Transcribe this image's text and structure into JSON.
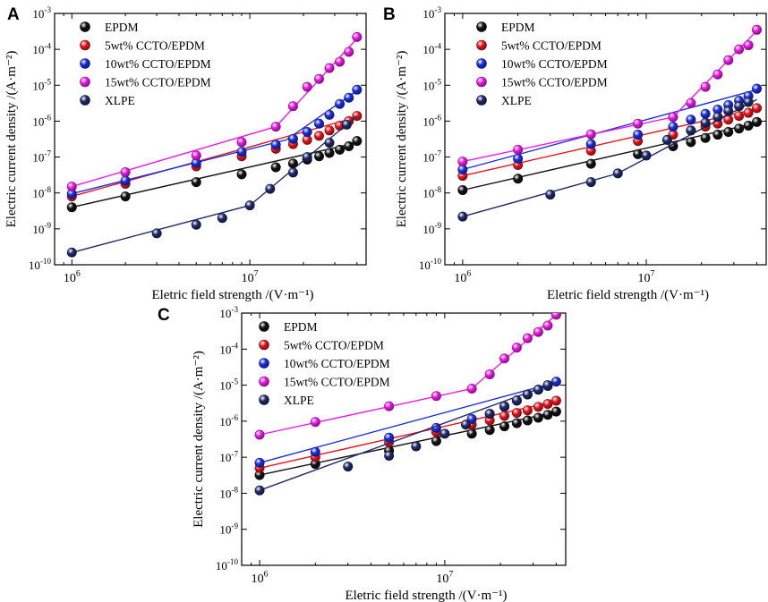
{
  "figure": {
    "panels": [
      "A",
      "B",
      "C"
    ]
  },
  "chart_data": [
    {
      "panel": "A",
      "type": "scatter",
      "xscale": "log",
      "yscale": "log",
      "xlabel": "Eletric field strength /(V·m⁻¹)",
      "ylabel": "Electric current density /(A·m⁻²)",
      "xlim": [
        800000.0,
        45000000.0
      ],
      "ylim": [
        1e-10,
        0.001
      ],
      "xticks": [
        "10^6",
        "10^7"
      ],
      "yticks": [
        "10^-10",
        "10^-9",
        "10^-8",
        "10^-7",
        "10^-6",
        "10^-5",
        "10^-4",
        "10^-3"
      ],
      "legend_position": "top-left",
      "series": [
        {
          "name": "EPDM",
          "color": "#111111",
          "x": [
            1000000.0,
            2000000.0,
            5000000.0,
            9000000.0,
            14000000.0,
            17500000.0,
            21000000.0,
            24500000.0,
            28000000.0,
            32000000.0,
            36000000.0,
            40000000.0
          ],
          "y": [
            4e-09,
            8e-09,
            2e-08,
            3.3e-08,
            5.2e-08,
            6.6e-08,
            8.5e-08,
            1.05e-07,
            1.3e-07,
            1.6e-07,
            2e-07,
            2.8e-07
          ],
          "fit": [
            [
              1000000.0,
              4e-09
            ],
            [
              40000000.0,
              2.5e-07
            ]
          ]
        },
        {
          "name": "5wt% CCTO/EPDM",
          "color": "#e8141c",
          "x": [
            1000000.0,
            2000000.0,
            5000000.0,
            9000000.0,
            14000000.0,
            17500000.0,
            21000000.0,
            24500000.0,
            28000000.0,
            32000000.0,
            36000000.0,
            40000000.0
          ],
          "y": [
            8e-09,
            1.8e-08,
            5.5e-08,
            1.05e-07,
            1.7e-07,
            2.3e-07,
            3e-07,
            3.9e-07,
            5.5e-07,
            7.5e-07,
            1e-06,
            1.4e-06
          ],
          "fit": [
            [
              1000000.0,
              8e-09
            ],
            [
              40000000.0,
              1.3e-06
            ]
          ]
        },
        {
          "name": "10wt% CCTO/EPDM",
          "color": "#1a2ee0",
          "x": [
            1000000.0,
            2000000.0,
            5000000.0,
            9000000.0,
            14000000.0,
            17500000.0,
            21000000.0,
            24500000.0,
            28000000.0,
            32000000.0,
            36000000.0,
            40000000.0
          ],
          "y": [
            9.5e-09,
            2.2e-08,
            6.8e-08,
            1.4e-07,
            2.2e-07,
            3.2e-07,
            5e-07,
            8.5e-07,
            1.5e-06,
            3e-06,
            4.5e-06,
            7.5e-06
          ],
          "fit": [
            [
              1000000.0,
              9.5e-09
            ],
            [
              16000000.0,
              3e-07
            ],
            [
              40000000.0,
              7e-06
            ]
          ]
        },
        {
          "name": "15wt% CCTO/EPDM",
          "color": "#ee1ae8",
          "x": [
            1000000.0,
            2000000.0,
            5000000.0,
            9000000.0,
            14000000.0,
            17500000.0,
            21000000.0,
            24500000.0,
            28000000.0,
            32000000.0,
            36000000.0,
            40000000.0
          ],
          "y": [
            1.5e-08,
            3.8e-08,
            1.1e-07,
            2.6e-07,
            7e-07,
            2.6e-06,
            9e-06,
            1.5e-05,
            3e-05,
            4.5e-05,
            8.5e-05,
            0.00022
          ],
          "fit": [
            [
              1000000.0,
              1.5e-08
            ],
            [
              14000000.0,
              7e-07
            ],
            [
              40000000.0,
              0.0002
            ]
          ]
        },
        {
          "name": "XLPE",
          "color": "#1f2a6b",
          "x": [
            1000000.0,
            3000000.0,
            5000000.0,
            7000000.0,
            10000000.0,
            13000000.0,
            17500000.0,
            21000000.0,
            28000000.0,
            35000000.0
          ],
          "y": [
            2.2e-10,
            7.5e-10,
            1.3e-09,
            2e-09,
            4.5e-09,
            1.3e-08,
            3.7e-08,
            1e-07,
            2.5e-07,
            8e-07
          ],
          "fit": [
            [
              1000000.0,
              2.2e-10
            ],
            [
              10000000.0,
              4.5e-09
            ],
            [
              40000000.0,
              1.4e-06
            ]
          ]
        }
      ]
    },
    {
      "panel": "B",
      "type": "scatter",
      "xscale": "log",
      "yscale": "log",
      "xlabel": "Eletric field strength /(V·m⁻¹)",
      "ylabel": "Electric current density /(A·m⁻²)",
      "xlim": [
        800000.0,
        45000000.0
      ],
      "ylim": [
        1e-10,
        0.001
      ],
      "xticks": [
        "10^6",
        "10^7"
      ],
      "yticks": [
        "10^-10",
        "10^-9",
        "10^-8",
        "10^-7",
        "10^-6",
        "10^-5",
        "10^-4",
        "10^-3"
      ],
      "legend_position": "top-left",
      "series": [
        {
          "name": "EPDM",
          "color": "#111111",
          "x": [
            1000000.0,
            2000000.0,
            5000000.0,
            9000000.0,
            14000000.0,
            17500000.0,
            21000000.0,
            24500000.0,
            28000000.0,
            32000000.0,
            36000000.0,
            40000000.0
          ],
          "y": [
            1.2e-08,
            2.5e-08,
            6.5e-08,
            1.2e-07,
            2e-07,
            2.6e-07,
            3.4e-07,
            4.2e-07,
            5e-07,
            6.2e-07,
            7.5e-07,
            9.5e-07
          ],
          "fit": [
            [
              1000000.0,
              1.2e-08
            ],
            [
              40000000.0,
              9e-07
            ]
          ]
        },
        {
          "name": "5wt% CCTO/EPDM",
          "color": "#e8141c",
          "x": [
            1000000.0,
            2000000.0,
            5000000.0,
            9000000.0,
            14000000.0,
            17500000.0,
            21000000.0,
            24500000.0,
            28000000.0,
            32000000.0,
            36000000.0,
            40000000.0
          ],
          "y": [
            3e-08,
            6e-08,
            1.5e-07,
            2.8e-07,
            4.2e-07,
            5.5e-07,
            7e-07,
            8.5e-07,
            1.1e-06,
            1.4e-06,
            1.7e-06,
            2.3e-06
          ],
          "fit": [
            [
              1000000.0,
              3e-08
            ],
            [
              40000000.0,
              2.2e-06
            ]
          ]
        },
        {
          "name": "10wt% CCTO/EPDM",
          "color": "#1a2ee0",
          "x": [
            1000000.0,
            2000000.0,
            5000000.0,
            9000000.0,
            14000000.0,
            17500000.0,
            21000000.0,
            24500000.0,
            28000000.0,
            32000000.0,
            36000000.0,
            40000000.0
          ],
          "y": [
            4.5e-08,
            9e-08,
            2.3e-07,
            4.2e-07,
            7e-07,
            1.1e-06,
            1.6e-06,
            2.1e-06,
            2.8e-06,
            3.7e-06,
            5e-06,
            8e-06
          ],
          "fit": [
            [
              1000000.0,
              4.5e-08
            ],
            [
              40000000.0,
              7.5e-06
            ]
          ]
        },
        {
          "name": "15wt% CCTO/EPDM",
          "color": "#ee1ae8",
          "x": [
            1000000.0,
            2000000.0,
            5000000.0,
            9000000.0,
            14000000.0,
            17500000.0,
            21000000.0,
            24500000.0,
            28000000.0,
            32000000.0,
            36000000.0,
            40000000.0
          ],
          "y": [
            7.5e-08,
            1.6e-07,
            4.3e-07,
            8.5e-07,
            1.3e-06,
            3.2e-06,
            9e-06,
            2e-05,
            5e-05,
            0.0001,
            0.00013,
            0.00035
          ],
          "fit": [
            [
              1000000.0,
              7.5e-08
            ],
            [
              14000000.0,
              1.3e-06
            ],
            [
              40000000.0,
              0.00033
            ]
          ]
        },
        {
          "name": "XLPE",
          "color": "#1f2a6b",
          "x": [
            1000000.0,
            3000000.0,
            5000000.0,
            7000000.0,
            10000000.0,
            13000000.0,
            17500000.0,
            21000000.0,
            24500000.0,
            28000000.0,
            32000000.0,
            36000000.0
          ],
          "y": [
            2.2e-09,
            9e-09,
            2e-08,
            3.5e-08,
            1.1e-07,
            3e-07,
            5.5e-07,
            9e-07,
            1.3e-06,
            1.9e-06,
            2.6e-06,
            3.4e-06
          ],
          "fit": [
            [
              1000000.0,
              2.2e-09
            ],
            [
              7000000.0,
              3.5e-08
            ],
            [
              40000000.0,
              4e-06
            ]
          ]
        }
      ]
    },
    {
      "panel": "C",
      "type": "scatter",
      "xscale": "log",
      "yscale": "log",
      "xlabel": "Eletric field strength /(V·m⁻¹)",
      "ylabel": "Electric current density /(A·m⁻²)",
      "xlim": [
        800000.0,
        45000000.0
      ],
      "ylim": [
        1e-10,
        0.001
      ],
      "xticks": [
        "10^6",
        "10^7"
      ],
      "yticks": [
        "10^-10",
        "10^-9",
        "10^-8",
        "10^-7",
        "10^-6",
        "10^-5",
        "10^-4",
        "10^-3"
      ],
      "legend_position": "top-left",
      "series": [
        {
          "name": "EPDM",
          "color": "#111111",
          "x": [
            1000000.0,
            2000000.0,
            5000000.0,
            9000000.0,
            14000000.0,
            17500000.0,
            21000000.0,
            24500000.0,
            28000000.0,
            32000000.0,
            36000000.0,
            40000000.0
          ],
          "y": [
            3.2e-08,
            6.5e-08,
            1.5e-07,
            2.8e-07,
            4.5e-07,
            5.7e-07,
            7.2e-07,
            8.8e-07,
            1.05e-06,
            1.25e-06,
            1.5e-06,
            1.85e-06
          ],
          "fit": [
            [
              1000000.0,
              3.2e-08
            ],
            [
              40000000.0,
              1.8e-06
            ]
          ]
        },
        {
          "name": "5wt% CCTO/EPDM",
          "color": "#e8141c",
          "x": [
            1000000.0,
            2000000.0,
            5000000.0,
            9000000.0,
            14000000.0,
            17500000.0,
            21000000.0,
            24500000.0,
            28000000.0,
            32000000.0,
            36000000.0,
            40000000.0
          ],
          "y": [
            5e-08,
            1e-07,
            2.6e-07,
            5e-07,
            8e-07,
            1.05e-06,
            1.4e-06,
            1.7e-06,
            2e-06,
            2.5e-06,
            3e-06,
            3.7e-06
          ],
          "fit": [
            [
              1000000.0,
              5e-08
            ],
            [
              40000000.0,
              3.6e-06
            ]
          ]
        },
        {
          "name": "10wt% CCTO/EPDM",
          "color": "#1a2ee0",
          "x": [
            1000000.0,
            2000000.0,
            5000000.0,
            9000000.0,
            14000000.0,
            17500000.0,
            21000000.0,
            24500000.0,
            28000000.0,
            32000000.0,
            36000000.0,
            40000000.0
          ],
          "y": [
            7e-08,
            1.4e-07,
            3.5e-07,
            6.5e-07,
            1.15e-06,
            1.6e-06,
            2.5e-06,
            3.7e-06,
            5.5e-06,
            7.5e-06,
            9.5e-06,
            1.25e-05
          ],
          "fit": [
            [
              1000000.0,
              7e-08
            ],
            [
              40000000.0,
              1.2e-05
            ]
          ]
        },
        {
          "name": "15wt% CCTO/EPDM",
          "color": "#ee1ae8",
          "x": [
            1000000.0,
            2000000.0,
            5000000.0,
            9000000.0,
            14000000.0,
            17500000.0,
            21000000.0,
            24500000.0,
            28000000.0,
            32000000.0,
            36000000.0,
            40000000.0
          ],
          "y": [
            4.2e-07,
            9.5e-07,
            2.6e-06,
            5e-06,
            8e-06,
            2e-05,
            5.5e-05,
            0.00011,
            0.0002,
            0.0003,
            0.00045,
            0.0009
          ],
          "fit": [
            [
              1000000.0,
              4.2e-07
            ],
            [
              14000000.0,
              8e-06
            ],
            [
              40000000.0,
              0.0009
            ]
          ]
        },
        {
          "name": "XLPE",
          "color": "#1f2a6b",
          "x": [
            1000000.0,
            3000000.0,
            5000000.0,
            7000000.0,
            10000000.0,
            13000000.0,
            17500000.0,
            21000000.0,
            24500000.0,
            28000000.0,
            32000000.0,
            36000000.0
          ],
          "y": [
            1.2e-08,
            5.5e-08,
            1.1e-07,
            2e-07,
            4.5e-07,
            8e-07,
            1.6e-06,
            2.6e-06,
            3.8e-06,
            5.5e-06,
            7.5e-06,
            1e-05
          ],
          "fit": [
            [
              1000000.0,
              1.2e-08
            ],
            [
              40000000.0,
              1.2e-05
            ]
          ]
        }
      ]
    }
  ]
}
